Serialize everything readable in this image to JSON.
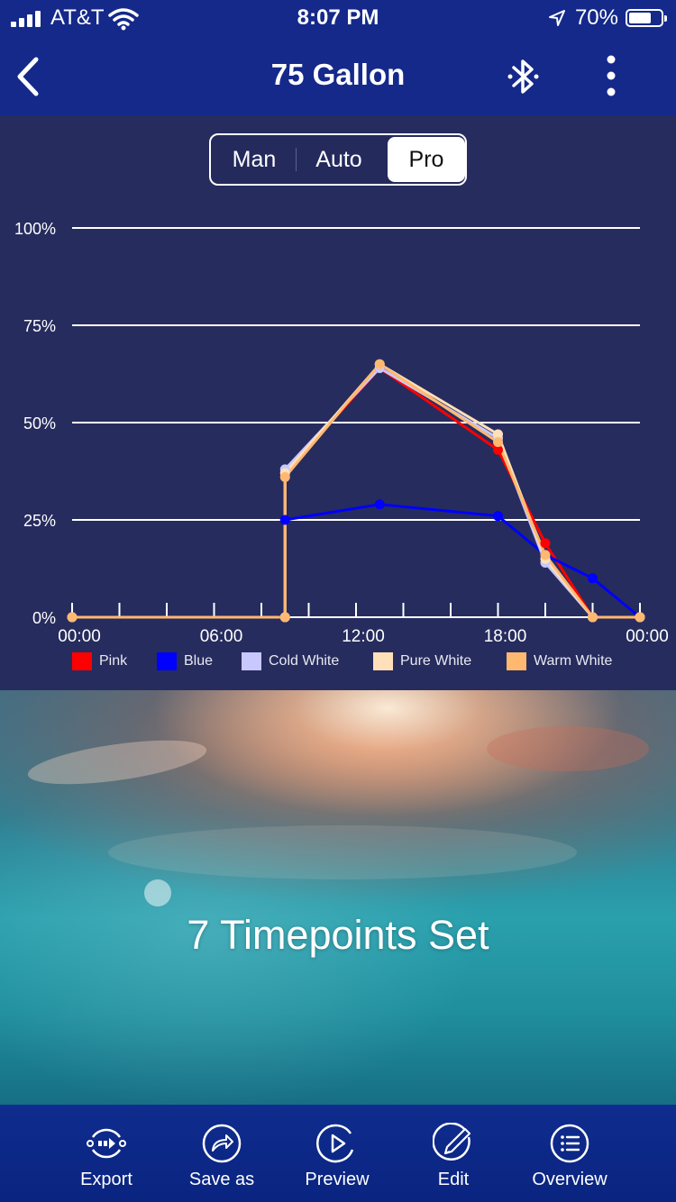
{
  "status_bar": {
    "carrier": "AT&T",
    "time": "8:07 PM",
    "battery": "70%",
    "battery_level": 0.7
  },
  "nav": {
    "title": "75 Gallon"
  },
  "mode_tabs": {
    "items": [
      "Man",
      "Auto",
      "Pro"
    ],
    "selected": "Pro"
  },
  "chart_data": {
    "type": "line",
    "ylim": [
      0,
      100
    ],
    "y_ticks": [
      "0%",
      "25%",
      "50%",
      "75%",
      "100%"
    ],
    "x_ticks": [
      "00:00",
      "06:00",
      "12:00",
      "18:00",
      "00:00"
    ],
    "x_range_hours": [
      0,
      24
    ],
    "grid": true,
    "legend_position": "bottom",
    "series": [
      {
        "name": "Pink",
        "color": "#ff0000",
        "x": [
          0,
          9,
          9,
          13,
          18,
          20,
          22,
          24
        ],
        "y": [
          0,
          0,
          37,
          64,
          43,
          19,
          0,
          0
        ]
      },
      {
        "name": "Blue",
        "color": "#0000ff",
        "x": [
          0,
          9,
          9,
          13,
          18,
          20,
          22,
          24
        ],
        "y": [
          0,
          0,
          25,
          29,
          26,
          16,
          10,
          0
        ]
      },
      {
        "name": "Cold White",
        "color": "#c8c8ff",
        "x": [
          0,
          9,
          9,
          13,
          18,
          20,
          22,
          24
        ],
        "y": [
          0,
          0,
          38,
          64,
          46,
          14,
          0,
          0
        ]
      },
      {
        "name": "Pure White",
        "color": "#ffe0b8",
        "x": [
          0,
          9,
          9,
          13,
          18,
          20,
          22,
          24
        ],
        "y": [
          0,
          0,
          37,
          65,
          47,
          15,
          0,
          0
        ]
      },
      {
        "name": "Warm White",
        "color": "#ffb870",
        "x": [
          0,
          9,
          9,
          13,
          18,
          20,
          22,
          24
        ],
        "y": [
          0,
          0,
          36,
          65,
          45,
          16,
          0,
          0
        ]
      }
    ]
  },
  "hero": {
    "text": "7 Timepoints Set"
  },
  "toolbar": {
    "export": "Export",
    "save_as": "Save as",
    "preview": "Preview",
    "edit": "Edit",
    "overview": "Overview"
  }
}
